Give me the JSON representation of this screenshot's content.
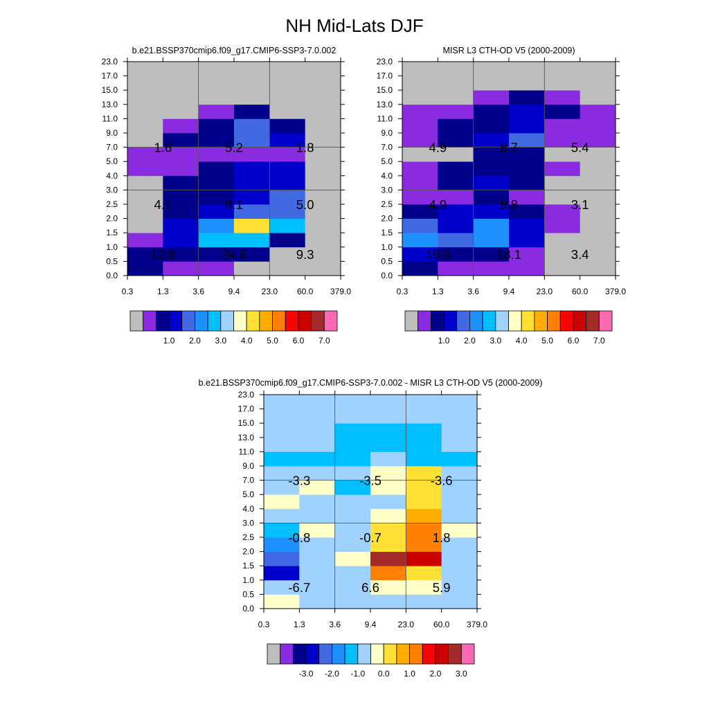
{
  "title": "NH Mid-Lats DJF",
  "palette": [
    "#bebebe",
    "#8a2be2",
    "#00008b",
    "#0000cd",
    "#4169e1",
    "#1e90ff",
    "#00bfff",
    "#a0d2ff",
    "#ffffc8",
    "#ffe135",
    "#ffad00",
    "#ff7f00",
    "#ff0000",
    "#cd0000",
    "#a52a2a",
    "#ff69b4"
  ],
  "chart_data": [
    {
      "type": "heatmap",
      "title": "b.e21.BSSP370cmip6.f09_g17.CMIP6-SSP3-7.0.002",
      "x_ticks": [
        "0.3",
        "1.3",
        "3.6",
        "9.4",
        "23.0",
        "60.0",
        "379.0"
      ],
      "y_ticks": [
        "0.0",
        "0.5",
        "1.0",
        "1.5",
        "2.0",
        "2.5",
        "3.0",
        "4.0",
        "5.0",
        "7.0",
        "9.0",
        "11.0",
        "13.0",
        "15.0",
        "17.0",
        "23.0"
      ],
      "cell_color_index": [
        [
          2,
          1,
          1,
          0,
          0,
          0
        ],
        [
          2,
          2,
          2,
          2,
          0,
          0
        ],
        [
          1,
          3,
          6,
          6,
          2,
          0
        ],
        [
          0,
          3,
          5,
          9,
          6,
          0
        ],
        [
          0,
          2,
          3,
          4,
          4,
          0
        ],
        [
          0,
          2,
          2,
          3,
          4,
          0
        ],
        [
          0,
          2,
          2,
          3,
          3,
          0
        ],
        [
          1,
          1,
          2,
          3,
          3,
          0
        ],
        [
          1,
          1,
          1,
          1,
          1,
          0
        ],
        [
          0,
          2,
          2,
          4,
          3,
          0
        ],
        [
          0,
          1,
          2,
          4,
          2,
          0
        ],
        [
          0,
          0,
          1,
          2,
          0,
          0
        ],
        [
          0,
          0,
          0,
          0,
          0,
          0
        ],
        [
          0,
          0,
          0,
          0,
          0,
          0
        ],
        [
          0,
          0,
          0,
          0,
          0,
          0
        ]
      ],
      "labels": [
        {
          "text": "12.6",
          "xb": 0,
          "yb": 0
        },
        {
          "text": "24.6",
          "xb": 1,
          "yb": 0
        },
        {
          "text": "9.3",
          "xb": 2,
          "yb": 0
        },
        {
          "text": "4.1",
          "xb": 0,
          "yb": 1
        },
        {
          "text": "8.1",
          "xb": 1,
          "yb": 1
        },
        {
          "text": "5.0",
          "xb": 2,
          "yb": 1
        },
        {
          "text": "1.6",
          "xb": 0,
          "yb": 2
        },
        {
          "text": "5.2",
          "xb": 1,
          "yb": 2
        },
        {
          "text": "1.8",
          "xb": 2,
          "yb": 2
        }
      ],
      "colorbar_labels": [
        "1.0",
        "2.0",
        "3.0",
        "4.0",
        "5.0",
        "6.0",
        "7.0"
      ]
    },
    {
      "type": "heatmap",
      "title": "MISR L3 CTH-OD V5 (2000-2009)",
      "x_ticks": [
        "0.3",
        "1.3",
        "3.6",
        "9.4",
        "23.0",
        "60.0",
        "379.0"
      ],
      "y_ticks": [
        "0.0",
        "0.5",
        "1.0",
        "1.5",
        "2.0",
        "2.5",
        "3.0",
        "4.0",
        "5.0",
        "7.0",
        "9.0",
        "11.0",
        "13.0",
        "15.0",
        "17.0",
        "23.0"
      ],
      "cell_color_index": [
        [
          2,
          1,
          1,
          1,
          0,
          0
        ],
        [
          3,
          2,
          2,
          1,
          0,
          0
        ],
        [
          5,
          4,
          5,
          3,
          0,
          0
        ],
        [
          4,
          3,
          5,
          3,
          1,
          0
        ],
        [
          2,
          3,
          3,
          2,
          1,
          0
        ],
        [
          1,
          1,
          2,
          1,
          0,
          0
        ],
        [
          1,
          2,
          3,
          2,
          0,
          0
        ],
        [
          1,
          2,
          2,
          2,
          1,
          0
        ],
        [
          0,
          0,
          2,
          2,
          0,
          0
        ],
        [
          1,
          2,
          3,
          4,
          1,
          1
        ],
        [
          1,
          2,
          2,
          3,
          1,
          1
        ],
        [
          1,
          1,
          2,
          3,
          2,
          1
        ],
        [
          0,
          0,
          1,
          2,
          1,
          0
        ],
        [
          0,
          0,
          0,
          0,
          0,
          0
        ],
        [
          0,
          0,
          0,
          0,
          0,
          0
        ]
      ],
      "labels": [
        {
          "text": "19.3",
          "xb": 0,
          "yb": 0
        },
        {
          "text": "18.1",
          "xb": 1,
          "yb": 0
        },
        {
          "text": "3.4",
          "xb": 2,
          "yb": 0
        },
        {
          "text": "4.9",
          "xb": 0,
          "yb": 1
        },
        {
          "text": "8.8",
          "xb": 1,
          "yb": 1
        },
        {
          "text": "3.1",
          "xb": 2,
          "yb": 1
        },
        {
          "text": "4.9",
          "xb": 0,
          "yb": 2
        },
        {
          "text": "8.7",
          "xb": 1,
          "yb": 2
        },
        {
          "text": "5.4",
          "xb": 2,
          "yb": 2
        }
      ],
      "colorbar_labels": [
        "1.0",
        "2.0",
        "3.0",
        "4.0",
        "5.0",
        "6.0",
        "7.0"
      ]
    },
    {
      "type": "heatmap",
      "title": "b.e21.BSSP370cmip6.f09_g17.CMIP6-SSP3-7.0.002 - MISR L3 CTH-OD V5 (2000-2009)",
      "x_ticks": [
        "0.3",
        "1.3",
        "3.6",
        "9.4",
        "23.0",
        "60.0",
        "379.0"
      ],
      "y_ticks": [
        "0.0",
        "0.5",
        "1.0",
        "1.5",
        "2.0",
        "2.5",
        "3.0",
        "4.0",
        "5.0",
        "7.0",
        "9.0",
        "11.0",
        "13.0",
        "15.0",
        "17.0",
        "23.0"
      ],
      "cell_color_index": [
        [
          8,
          7,
          7,
          7,
          7,
          7
        ],
        [
          7,
          7,
          7,
          8,
          8,
          7
        ],
        [
          3,
          7,
          7,
          11,
          9,
          7
        ],
        [
          4,
          7,
          8,
          14,
          13,
          7
        ],
        [
          5,
          7,
          7,
          9,
          11,
          7
        ],
        [
          6,
          8,
          7,
          9,
          11,
          8
        ],
        [
          7,
          7,
          7,
          8,
          10,
          7
        ],
        [
          8,
          7,
          7,
          7,
          9,
          7
        ],
        [
          7,
          8,
          6,
          8,
          9,
          7
        ],
        [
          7,
          7,
          7,
          8,
          9,
          7
        ],
        [
          6,
          6,
          6,
          7,
          6,
          6
        ],
        [
          7,
          7,
          6,
          6,
          6,
          7
        ],
        [
          7,
          7,
          6,
          6,
          6,
          7
        ],
        [
          7,
          7,
          7,
          7,
          7,
          7
        ],
        [
          7,
          7,
          7,
          7,
          7,
          7
        ]
      ],
      "labels": [
        {
          "text": "-6.7",
          "xb": 0,
          "yb": 0
        },
        {
          "text": "6.6",
          "xb": 1,
          "yb": 0
        },
        {
          "text": "5.9",
          "xb": 2,
          "yb": 0
        },
        {
          "text": "-0.8",
          "xb": 0,
          "yb": 1
        },
        {
          "text": "-0.7",
          "xb": 1,
          "yb": 1
        },
        {
          "text": "1.8",
          "xb": 2,
          "yb": 1
        },
        {
          "text": "-3.3",
          "xb": 0,
          "yb": 2
        },
        {
          "text": "-3.5",
          "xb": 1,
          "yb": 2
        },
        {
          "text": "-3.6",
          "xb": 2,
          "yb": 2
        }
      ],
      "colorbar_labels": [
        "-3.0",
        "-2.0",
        "-1.0",
        "0.0",
        "1.0",
        "2.0",
        "3.0"
      ]
    }
  ]
}
